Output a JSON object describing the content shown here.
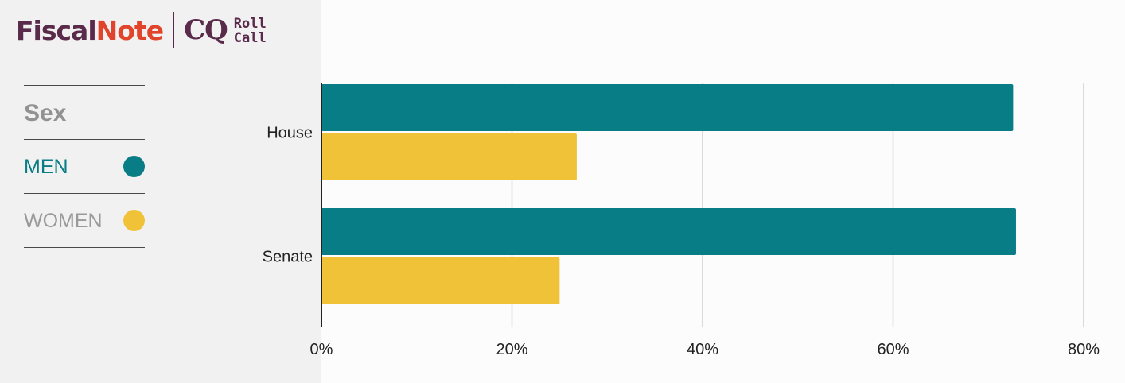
{
  "brand": {
    "fiscal": "Fiscal",
    "note": "Note",
    "cq": "CQ",
    "roll": "Roll",
    "call": "Call"
  },
  "legend": {
    "title": "Sex",
    "items": [
      {
        "label": "MEN",
        "color": "#087d85"
      },
      {
        "label": "WOMEN",
        "color": "#efc238"
      }
    ]
  },
  "colors": {
    "men": "#087d85",
    "women": "#efc238",
    "men_label": "#087d85",
    "women_label": "#9a9a9a"
  },
  "chart_data": {
    "type": "bar",
    "orientation": "horizontal",
    "categories": [
      "House",
      "Senate"
    ],
    "series": [
      {
        "name": "MEN",
        "values": [
          72.6,
          72.9
        ]
      },
      {
        "name": "WOMEN",
        "values": [
          26.8,
          25.0
        ]
      }
    ],
    "xlim": [
      0,
      80
    ],
    "x_ticks": [
      "0%",
      "20%",
      "40%",
      "60%",
      "80%"
    ],
    "x_tick_values": [
      0,
      20,
      40,
      60,
      80
    ],
    "grid": true,
    "legend_placement": "left"
  }
}
